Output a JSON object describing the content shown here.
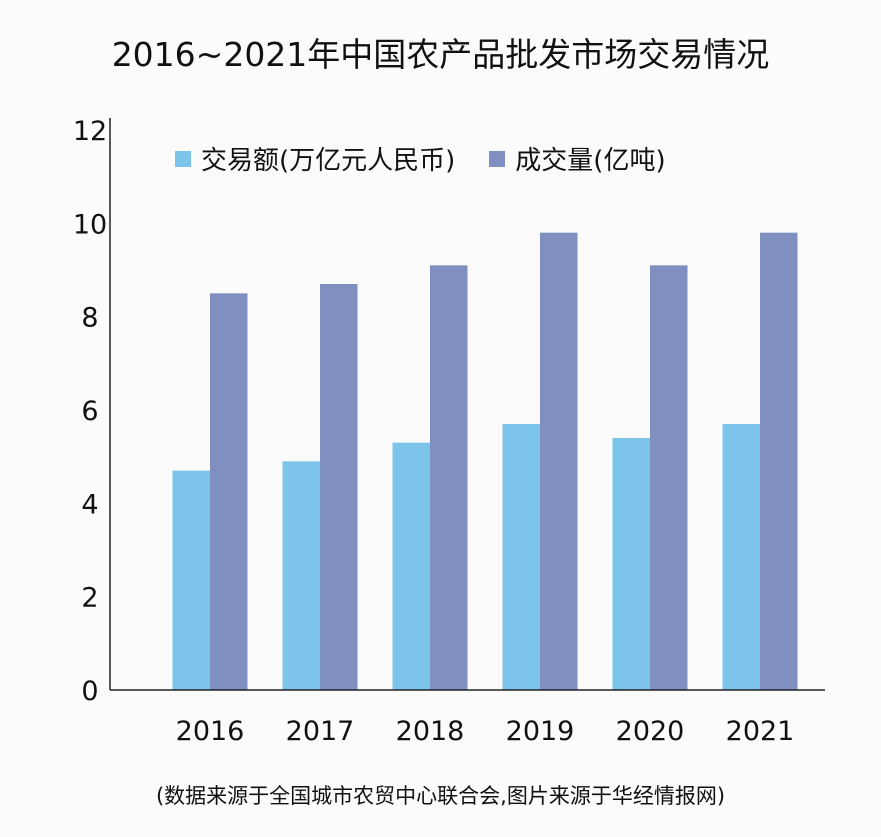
{
  "chart_data": {
    "type": "bar",
    "title": "2016~2021年中国农产品批发市场交易情况",
    "categories": [
      "2016",
      "2017",
      "2018",
      "2019",
      "2020",
      "2021"
    ],
    "series": [
      {
        "name": "交易额(万亿元人民币)",
        "color": "#7cc4ea",
        "values": [
          4.7,
          4.9,
          5.3,
          5.7,
          5.4,
          5.7
        ]
      },
      {
        "name": "成交量(亿吨)",
        "color": "#7f8fbf",
        "values": [
          8.5,
          8.7,
          9.1,
          9.8,
          9.1,
          9.8
        ]
      }
    ],
    "ylim": [
      0,
      12
    ],
    "yticks": [
      "0",
      "2",
      "4",
      "6",
      "8",
      "10",
      "12"
    ],
    "grid": false,
    "legend": "top",
    "note": "(数据来源于全国城市农贸中心联合会,图片来源于华经情报网)"
  }
}
